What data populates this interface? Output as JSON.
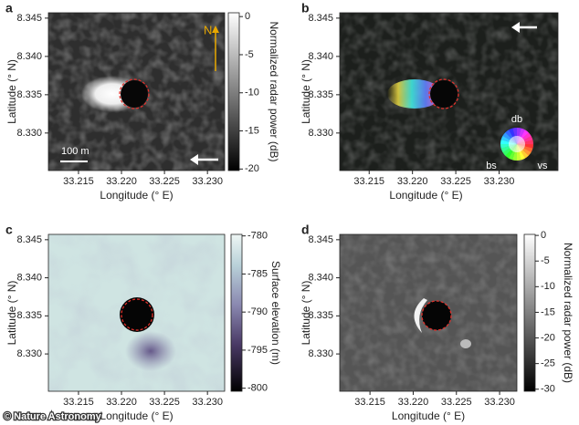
{
  "credit": "© Nature Astronomy",
  "chart_data": [
    {
      "type": "heatmap",
      "panel": "a",
      "xlabel": "Longitude (° E)",
      "ylabel": "Latitude (° N)",
      "xlim": [
        33.2115,
        33.232
      ],
      "ylim": [
        8.3251,
        8.3457
      ],
      "xticks": [
        33.215,
        {
          "value": 33.22,
          "label": "33.220"
        },
        33.225,
        {
          "value": 33.23,
          "label": "33.230"
        }
      ],
      "yticks": [
        8.345,
        {
          "value": 8.34,
          "label": "8.340"
        },
        8.335,
        {
          "value": 8.33,
          "label": "8.330"
        }
      ],
      "colorbar": {
        "label": "Normalized radar power (dB)",
        "lim": [
          -20.2,
          0.5
        ],
        "ticks": [
          0,
          -5,
          -10,
          -15,
          -20
        ]
      },
      "annotations": [
        "N",
        "100 m"
      ]
    },
    {
      "type": "heatmap",
      "panel": "b",
      "xlabel": "Longitude (° E)",
      "ylabel": "Latitude (° N)",
      "xlim": [
        33.2116,
        33.2368
      ],
      "ylim": [
        8.3251,
        8.3457
      ],
      "xticks": [
        33.215,
        {
          "value": 33.22,
          "label": "33.220"
        },
        33.225,
        {
          "value": 33.23,
          "label": "33.230"
        }
      ],
      "yticks": [
        8.345,
        {
          "value": 8.34,
          "label": "8.340"
        },
        8.335,
        {
          "value": 8.33,
          "label": "8.330"
        }
      ],
      "annotations": [
        "db",
        "bs",
        "vs"
      ]
    },
    {
      "type": "heatmap",
      "panel": "c",
      "xlabel": "Longitude (° E)",
      "ylabel": "Latitude (° N)",
      "xlim": [
        33.2115,
        33.232
      ],
      "ylim": [
        8.3251,
        8.3457
      ],
      "xticks": [
        33.215,
        {
          "value": 33.22,
          "label": "33.220"
        },
        33.225,
        {
          "value": 33.23,
          "label": "33.230"
        }
      ],
      "yticks": [
        8.345,
        {
          "value": 8.34,
          "label": "8.340"
        },
        8.335,
        {
          "value": 8.33,
          "label": "8.330"
        }
      ],
      "colorbar": {
        "label": "Surface elevation (m)",
        "lim": [
          -800.4,
          -779.8
        ],
        "ticks": [
          -780,
          -785,
          -790,
          -795,
          -800
        ]
      }
    },
    {
      "type": "heatmap",
      "panel": "d",
      "xlabel": "Longitude (° E)",
      "ylabel": "Latitude (° N)",
      "xlim": [
        33.2115,
        33.232
      ],
      "ylim": [
        8.3251,
        8.3457
      ],
      "xticks": [
        33.215,
        {
          "value": 33.22,
          "label": "33.220"
        },
        33.225,
        {
          "value": 33.23,
          "label": "33.230"
        }
      ],
      "yticks": [
        8.345,
        {
          "value": 8.34,
          "label": "8.340"
        },
        8.335,
        {
          "value": 8.33,
          "label": "8.330"
        }
      ],
      "colorbar": {
        "label": "Normalized radar power (dB)",
        "lim": [
          -30.4,
          0.2
        ],
        "ticks": [
          0,
          -5,
          -10,
          -15,
          -20,
          -25,
          -30
        ]
      }
    }
  ]
}
